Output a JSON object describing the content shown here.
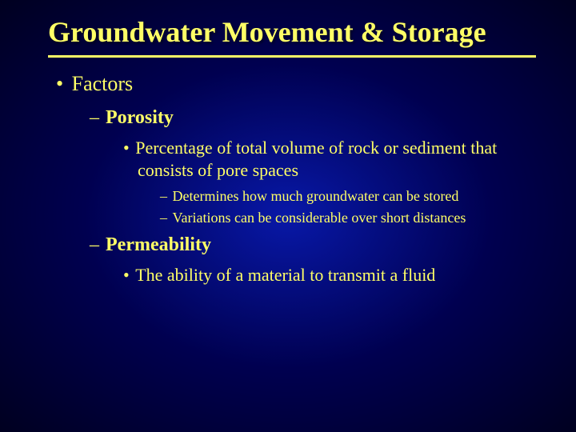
{
  "slide": {
    "title": "Groundwater Movement & Storage",
    "level1": "Factors",
    "porosity": {
      "label": "Porosity",
      "def": "Percentage of total volume of rock or sediment that consists of pore spaces",
      "sub1": "Determines how much groundwater can be stored",
      "sub2": "Variations can be considerable over short distances"
    },
    "permeability": {
      "label": "Permeability",
      "def": "The ability of a material to transmit a fluid"
    }
  },
  "style": {
    "bg_center": "#0818a8",
    "bg_mid": "#000050",
    "bg_edge": "#000020",
    "text_color": "#ffff66",
    "title_fontsize": 36,
    "l1_fontsize": 26,
    "l2_fontsize": 24,
    "l3_fontsize": 22,
    "l4_fontsize": 18,
    "underline_width": 3,
    "font_family": "Georgia, Times New Roman, serif"
  }
}
